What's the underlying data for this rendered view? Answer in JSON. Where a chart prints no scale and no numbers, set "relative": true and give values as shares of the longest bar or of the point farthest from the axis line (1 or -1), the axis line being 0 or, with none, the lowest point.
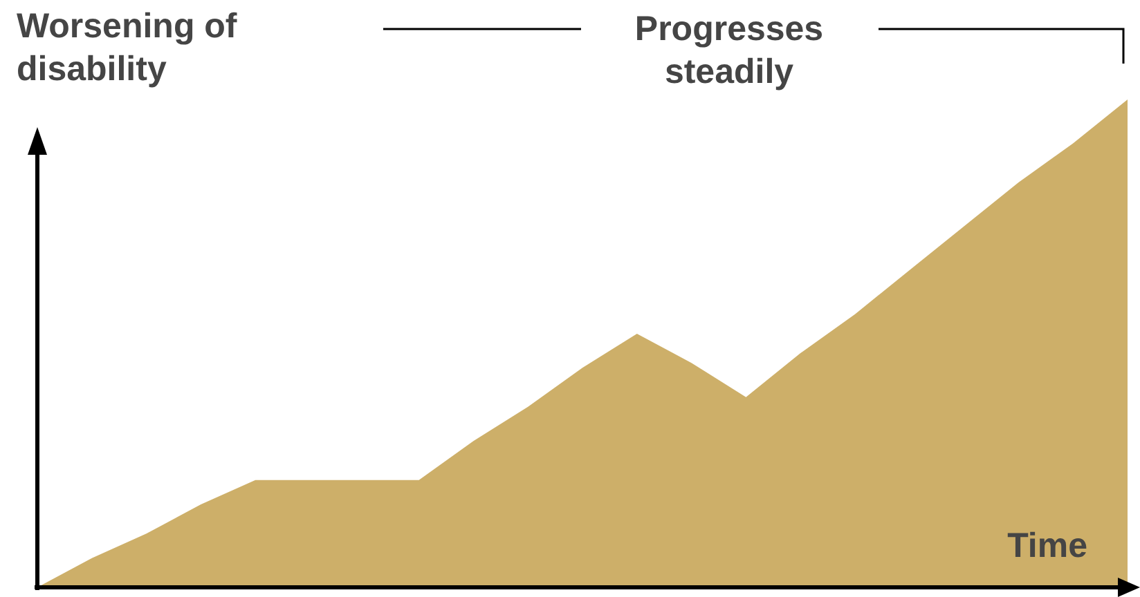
{
  "chart_data": {
    "type": "area",
    "relative": true,
    "ylabel": "Worsening of disability",
    "xlabel": "Time",
    "annotations": [
      "Progresses steadily"
    ],
    "categories": [
      null,
      null,
      null,
      null,
      null,
      null,
      null,
      null,
      null,
      null,
      null,
      null,
      null,
      null,
      null,
      null,
      null,
      null,
      null,
      null,
      null
    ],
    "series": [
      {
        "color": "#cdaf69",
        "values": [
          0,
          0.06,
          0.11,
          0.17,
          0.22,
          0.22,
          0.22,
          0.22,
          0.3,
          0.37,
          0.45,
          0.52,
          0.46,
          0.39,
          0.48,
          0.56,
          0.65,
          0.74,
          0.83,
          0.91,
          1
        ]
      }
    ]
  }
}
